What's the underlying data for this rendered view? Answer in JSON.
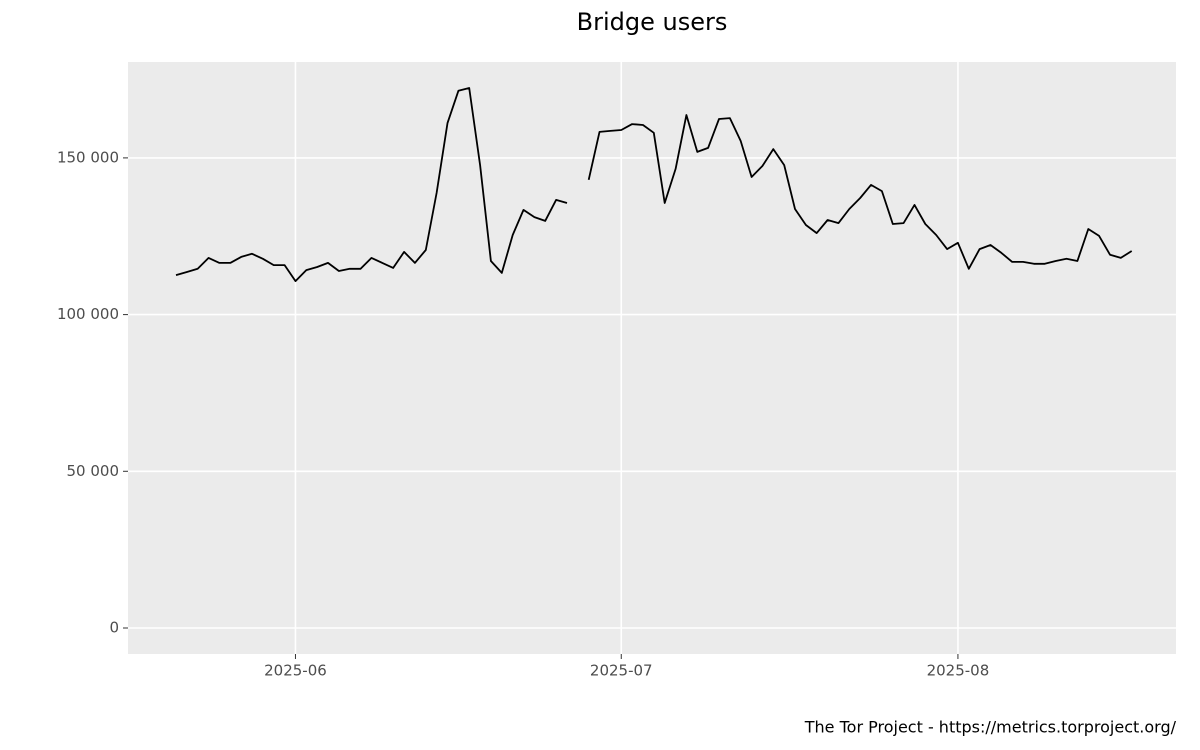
{
  "chart_data": {
    "type": "line",
    "title": "Bridge users",
    "caption": "The Tor Project - https://metrics.torproject.org/",
    "series": [
      {
        "color": "#000000",
        "values": [
          112600,
          113600,
          114600,
          118100,
          116500,
          116500,
          118400,
          119400,
          117800,
          115800,
          115800,
          110700,
          114200,
          115200,
          116500,
          113900,
          114600,
          114600,
          118100,
          116500,
          114900,
          120000,
          116500,
          120600,
          138800,
          161100,
          171400,
          172300,
          147700,
          117100,
          113300,
          125400,
          133400,
          131100,
          129900,
          136600,
          135600,
          null,
          143000,
          158300,
          158600,
          158900,
          160800,
          160500,
          158000,
          135600,
          146500,
          163700,
          151900,
          153200,
          162400,
          162700,
          155400,
          143900,
          147400,
          152800,
          147700,
          133700,
          128600,
          126000,
          130200,
          129200,
          133700,
          137200,
          141400,
          139400,
          128900,
          129200,
          135000,
          128900,
          125400,
          120900,
          122900,
          114600,
          120900,
          122200,
          119700,
          116800,
          116800,
          116200,
          116200,
          117100,
          117800,
          117100,
          127300,
          125100,
          119100,
          118100,
          120300
        ]
      }
    ],
    "xlim": [
      -4.42,
      92.08
    ],
    "xticks": [
      {
        "value": 11,
        "label": "2025-06"
      },
      {
        "value": 41,
        "label": "2025-07"
      },
      {
        "value": 72,
        "label": "2025-08"
      }
    ],
    "ylim": [
      -8300,
      180600
    ],
    "yticks": [
      0,
      {
        "value": 50000,
        "label": "50 000"
      },
      {
        "value": 100000,
        "label": "100 000"
      },
      {
        "value": 150000,
        "label": "150 000"
      }
    ],
    "grid": true
  }
}
